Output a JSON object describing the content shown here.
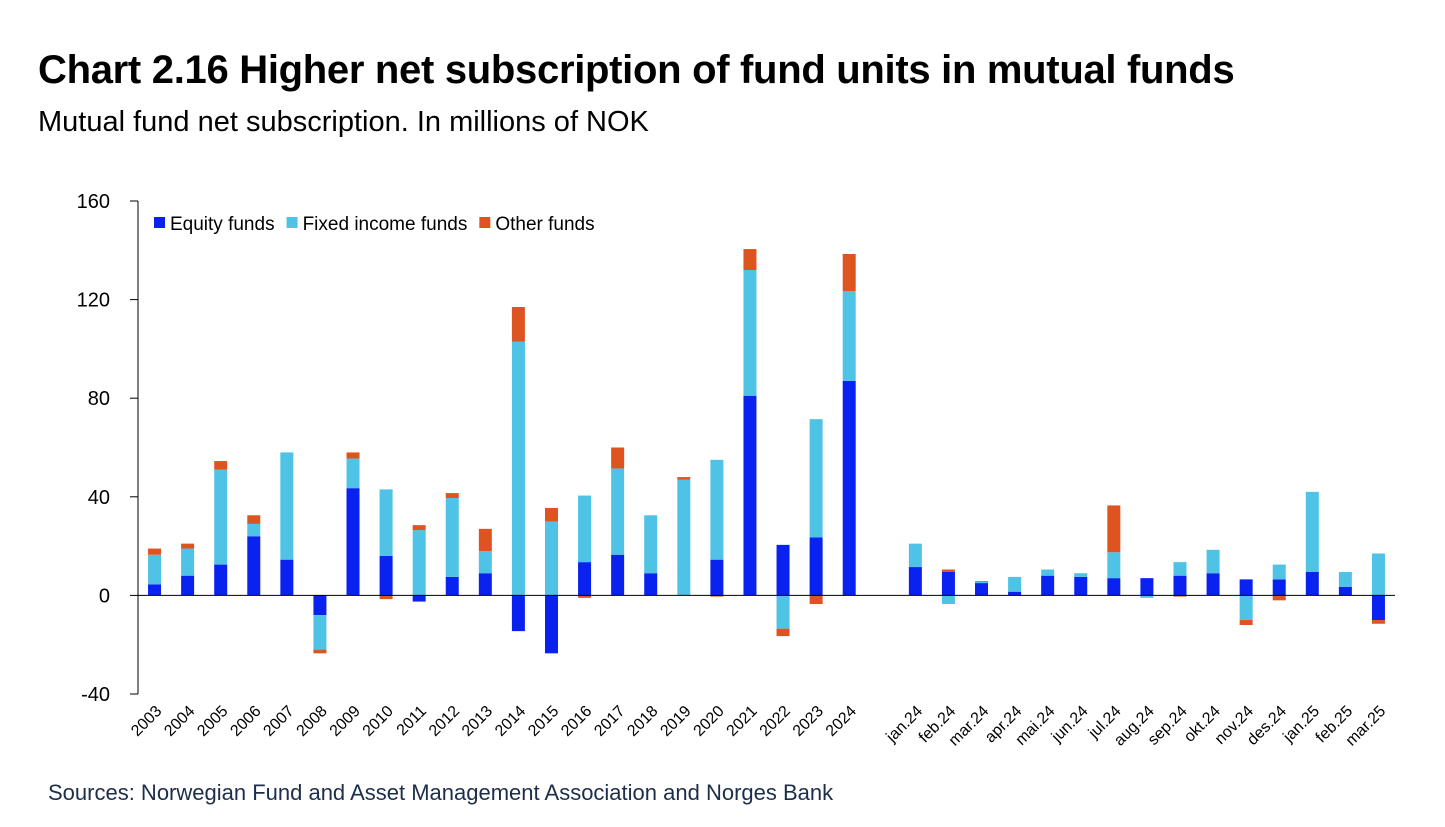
{
  "title": "Chart 2.16 Higher net subscription of fund units in mutual funds",
  "subtitle": "Mutual fund net subscription. In millions of NOK",
  "source": "Sources: Norwegian Fund and Asset Management Association and Norges Bank",
  "chart_data": {
    "type": "bar",
    "stacked": true,
    "ylim": [
      -40,
      160
    ],
    "yticks": [
      -40,
      0,
      40,
      80,
      120,
      160
    ],
    "legend_position": "top-left",
    "categories": [
      "2003",
      "2004",
      "2005",
      "2006",
      "2007",
      "2008",
      "2009",
      "2010",
      "2011",
      "2012",
      "2013",
      "2014",
      "2015",
      "2016",
      "2017",
      "2018",
      "2019",
      "2020",
      "2021",
      "2022",
      "2023",
      "2024",
      "",
      "jan.24",
      "feb.24",
      "mar.24",
      "apr.24",
      "mai.24",
      "jun.24",
      "jul.24",
      "aug.24",
      "sep.24",
      "okt.24",
      "nov.24",
      "des.24",
      "jan.25",
      "feb.25",
      "mar.25"
    ],
    "series": [
      {
        "name": "Equity funds",
        "color": "#0a22f0",
        "values": [
          4.5,
          8,
          12.5,
          24,
          14.5,
          -8,
          43.5,
          16,
          -2.5,
          7.5,
          9,
          -14.5,
          -23.5,
          13.5,
          16.5,
          9,
          0,
          14.5,
          81,
          20.5,
          23.5,
          87,
          null,
          11.5,
          9.5,
          5,
          1.5,
          8,
          7.5,
          7,
          7,
          8,
          9,
          6.5,
          6.5,
          9.5,
          3.5,
          -10
        ]
      },
      {
        "name": "Fixed income funds",
        "color": "#4fc3e5",
        "values": [
          12,
          11,
          38.5,
          5,
          43.5,
          -14,
          12,
          27,
          26.5,
          32,
          9,
          103,
          30,
          27,
          35,
          23.5,
          47,
          40.5,
          51,
          -13.5,
          48,
          36.5,
          null,
          9.5,
          -3.5,
          0.5,
          6,
          2.5,
          1.5,
          10.5,
          -1,
          5.5,
          9.5,
          -10,
          6,
          32.5,
          6,
          17
        ]
      },
      {
        "name": "Other funds",
        "color": "#dd5420",
        "values": [
          2.5,
          2,
          3.5,
          3.5,
          0,
          -1.5,
          2.5,
          -1.5,
          2,
          2,
          9,
          14,
          5.5,
          -1,
          8.5,
          0,
          1,
          -0.5,
          8.5,
          -3,
          -3.5,
          15,
          null,
          0,
          1,
          0.3,
          0,
          0,
          0,
          19,
          0,
          -0.5,
          0,
          -2,
          -2,
          0,
          0,
          -1.5
        ]
      }
    ]
  }
}
